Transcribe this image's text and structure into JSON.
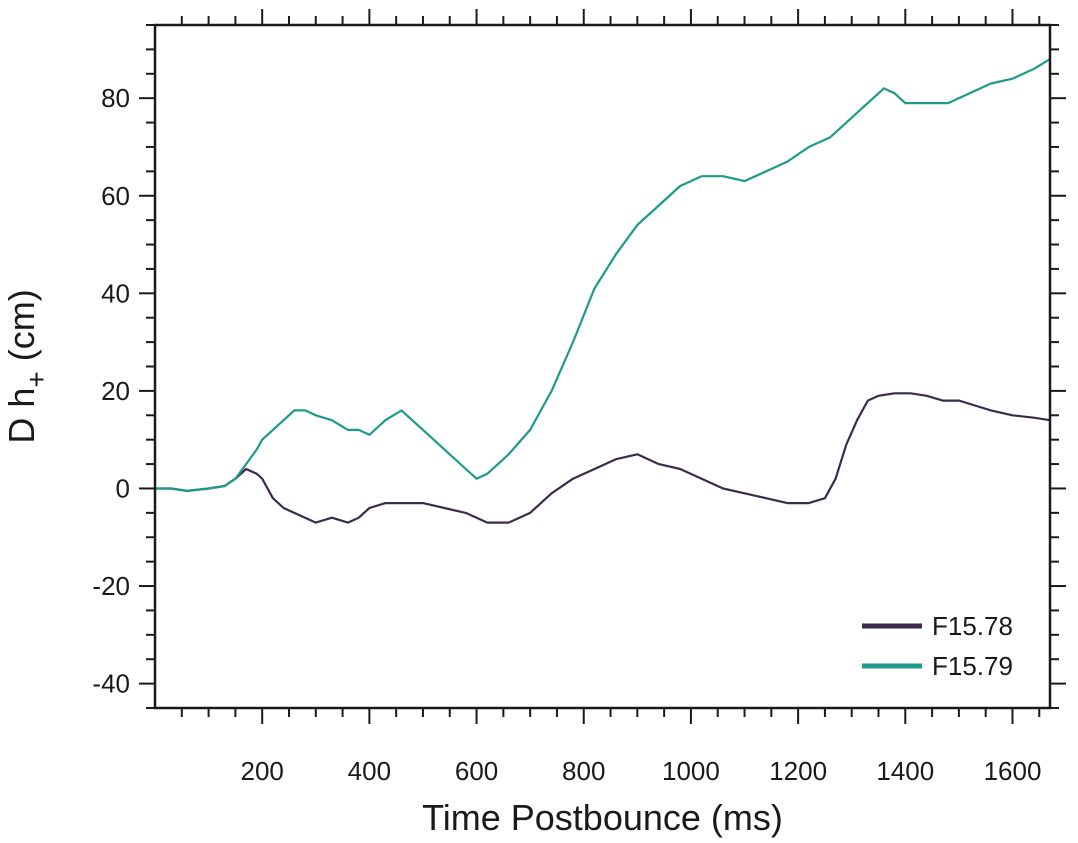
{
  "chart_data": {
    "type": "line",
    "xlabel": "Time Postbounce (ms)",
    "ylabel_main": "D h",
    "ylabel_sub": "+",
    "ylabel_unit": " (cm)",
    "xlim": [
      0,
      1670
    ],
    "ylim": [
      -45,
      95
    ],
    "xticks": [
      200,
      400,
      600,
      800,
      1000,
      1200,
      1400,
      1600
    ],
    "yticks": [
      -40,
      -20,
      0,
      20,
      40,
      60,
      80
    ],
    "x_minor_step": 50,
    "y_minor_step": 5,
    "grid": false,
    "legend_position": "bottom-right",
    "series": [
      {
        "name": "F15.78",
        "color": "#3f2a4f",
        "x": [
          0,
          30,
          60,
          100,
          130,
          150,
          170,
          190,
          200,
          220,
          240,
          260,
          280,
          300,
          330,
          360,
          380,
          400,
          430,
          460,
          500,
          540,
          580,
          620,
          660,
          700,
          740,
          780,
          820,
          860,
          900,
          940,
          980,
          1020,
          1060,
          1100,
          1140,
          1180,
          1220,
          1250,
          1270,
          1290,
          1310,
          1330,
          1350,
          1380,
          1410,
          1440,
          1470,
          1500,
          1530,
          1560,
          1600,
          1640,
          1670
        ],
        "y": [
          0,
          0,
          -0.5,
          0,
          0.5,
          2,
          4,
          3,
          2,
          -2,
          -4,
          -5,
          -6,
          -7,
          -6,
          -7,
          -6,
          -4,
          -3,
          -3,
          -3,
          -4,
          -5,
          -7,
          -7,
          -5,
          -1,
          2,
          4,
          6,
          7,
          5,
          4,
          2,
          0,
          -1,
          -2,
          -3,
          -3,
          -2,
          2,
          9,
          14,
          18,
          19,
          19.5,
          19.5,
          19,
          18,
          18,
          17,
          16,
          15,
          14.5,
          14
        ]
      },
      {
        "name": "F15.79",
        "color": "#1c9a8a",
        "x": [
          0,
          30,
          60,
          100,
          130,
          150,
          170,
          190,
          200,
          220,
          240,
          260,
          280,
          300,
          330,
          360,
          380,
          400,
          430,
          460,
          500,
          540,
          580,
          600,
          620,
          660,
          700,
          740,
          780,
          820,
          860,
          900,
          940,
          980,
          1020,
          1060,
          1100,
          1140,
          1180,
          1220,
          1260,
          1300,
          1340,
          1360,
          1380,
          1400,
          1440,
          1480,
          1520,
          1560,
          1600,
          1640,
          1670
        ],
        "y": [
          0,
          0,
          -0.5,
          0,
          0.5,
          2,
          5,
          8,
          10,
          12,
          14,
          16,
          16,
          15,
          14,
          12,
          12,
          11,
          14,
          16,
          12,
          8,
          4,
          2,
          3,
          7,
          12,
          20,
          30,
          41,
          48,
          54,
          58,
          62,
          64,
          64,
          63,
          65,
          67,
          70,
          72,
          76,
          80,
          82,
          81,
          79,
          79,
          79,
          81,
          83,
          84,
          86,
          88
        ]
      }
    ]
  }
}
